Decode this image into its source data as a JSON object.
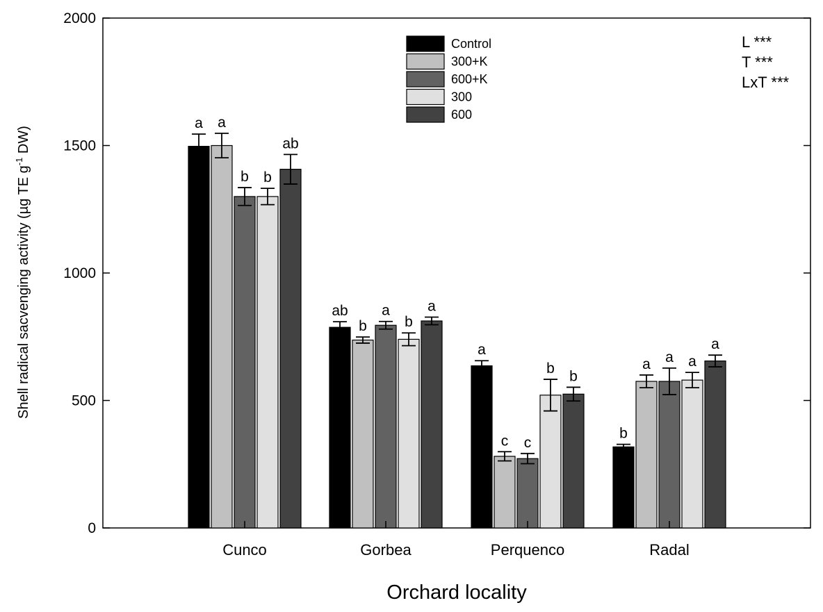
{
  "chart_data": {
    "type": "bar",
    "title": "",
    "xlabel": "Orchard locality",
    "ylabel_main": "Shell radical sacvenging activity (µg TE g",
    "ylabel_sup": "-1",
    "ylabel_end": " DW)",
    "ylim": [
      0,
      2000
    ],
    "yticks": [
      0,
      500,
      1000,
      1500,
      2000
    ],
    "grid": false,
    "legend_position": "top-center",
    "categories": [
      "Cunco",
      "Gorbea",
      "Perquenco",
      "Radal"
    ],
    "series": [
      {
        "name": "Control",
        "color": "#000000",
        "values": [
          1497,
          787,
          636,
          318
        ],
        "errors": [
          48,
          22,
          20,
          10
        ],
        "letters": [
          "a",
          "ab",
          "a",
          "b"
        ]
      },
      {
        "name": "300+K",
        "color": "#c0c0c0",
        "values": [
          1500,
          737,
          281,
          575
        ],
        "errors": [
          48,
          12,
          18,
          25
        ],
        "letters": [
          "a",
          "b",
          "c",
          "a"
        ]
      },
      {
        "name": "600+K",
        "color": "#626262",
        "values": [
          1300,
          795,
          272,
          575
        ],
        "errors": [
          35,
          15,
          20,
          52
        ],
        "letters": [
          "b",
          "a",
          "c",
          "a"
        ]
      },
      {
        "name": "300",
        "color": "#e0e0e0",
        "values": [
          1300,
          740,
          521,
          580
        ],
        "errors": [
          32,
          25,
          62,
          30
        ],
        "letters": [
          "b",
          "b",
          "b",
          "a"
        ]
      },
      {
        "name": "600",
        "color": "#424242",
        "values": [
          1407,
          812,
          525,
          655
        ],
        "errors": [
          58,
          15,
          27,
          23
        ],
        "letters": [
          "ab",
          "a",
          "b",
          "a"
        ]
      }
    ],
    "annotations": [
      "L ***",
      "T ***",
      "LxT ***"
    ]
  }
}
